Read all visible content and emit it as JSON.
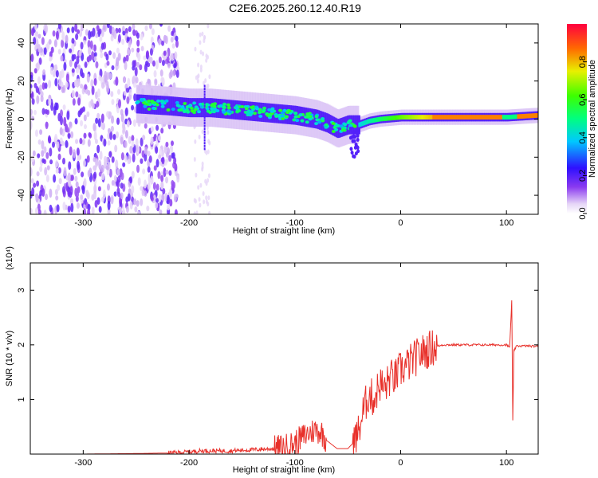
{
  "title": "C2E6.2025.260.12.40.R19",
  "chart_data": [
    {
      "type": "heatmap",
      "xlabel": "Height of straight line (km)",
      "ylabel": "Frequency (Hz)",
      "xlim": [
        -350,
        130
      ],
      "ylim": [
        -50,
        50
      ],
      "xticks": [
        -300,
        -200,
        -100,
        0,
        100
      ],
      "yticks": [
        -40,
        -20,
        0,
        20,
        40
      ],
      "colorbar": {
        "label": "Normalized spectral amplitude",
        "range": [
          0,
          1
        ],
        "ticks": [
          0.0,
          0.2,
          0.4,
          0.6,
          0.8
        ],
        "colormap": "rainbow (white-violet-blue-cyan-green-yellow-red)"
      },
      "features": {
        "noise_region_x": [
          -350,
          -210
        ],
        "noise_strip_x": [
          -195,
          -180
        ],
        "trace_center_hz": [
          [
            -250,
            8
          ],
          [
            -220,
            7
          ],
          [
            -200,
            6
          ],
          [
            -180,
            6
          ],
          [
            -160,
            5
          ],
          [
            -140,
            4
          ],
          [
            -120,
            3
          ],
          [
            -100,
            2
          ],
          [
            -90,
            1
          ],
          [
            -80,
            0
          ],
          [
            -70,
            -2
          ],
          [
            -60,
            -5
          ],
          [
            -50,
            -3
          ],
          [
            -40,
            -3
          ],
          [
            -30,
            -1
          ],
          [
            -20,
            0
          ],
          [
            0,
            1
          ],
          [
            50,
            1
          ],
          [
            100,
            1
          ],
          [
            130,
            2
          ]
        ]
      }
    },
    {
      "type": "line",
      "xlabel": "Height of straight line (km)",
      "ylabel": "SNR (10 * v/v)",
      "ylabel_multiplier": "(x10⁴)",
      "xlim": [
        -350,
        130
      ],
      "ylim": [
        0,
        3.5
      ],
      "xticks": [
        -300,
        -200,
        -100,
        0,
        100
      ],
      "yticks": [
        1,
        2,
        3
      ],
      "series": [
        {
          "color": "#e8302a",
          "x": [
            -350,
            -300,
            -250,
            -220,
            -200,
            -190,
            -180,
            -160,
            -140,
            -120,
            -110,
            -100,
            -90,
            -80,
            -75,
            -70,
            -60,
            -50,
            -45,
            -40,
            -35,
            -30,
            -25,
            -20,
            -15,
            -10,
            -5,
            0,
            5,
            10,
            20,
            30,
            40,
            50,
            60,
            80,
            100,
            103,
            105,
            106,
            107,
            110,
            120,
            130
          ],
          "y": [
            0.0,
            0.0,
            0.01,
            0.02,
            0.04,
            0.06,
            0.06,
            0.06,
            0.08,
            0.1,
            0.12,
            0.2,
            0.35,
            0.45,
            0.4,
            0.25,
            0.1,
            0.1,
            0.2,
            0.4,
            0.8,
            1.1,
            1.0,
            1.3,
            1.2,
            1.4,
            1.4,
            1.55,
            1.6,
            1.7,
            1.85,
            1.95,
            2.0,
            2.0,
            2.0,
            2.0,
            2.0,
            1.95,
            2.8,
            0.6,
            1.9,
            1.98,
            1.98,
            1.97
          ]
        }
      ]
    }
  ]
}
